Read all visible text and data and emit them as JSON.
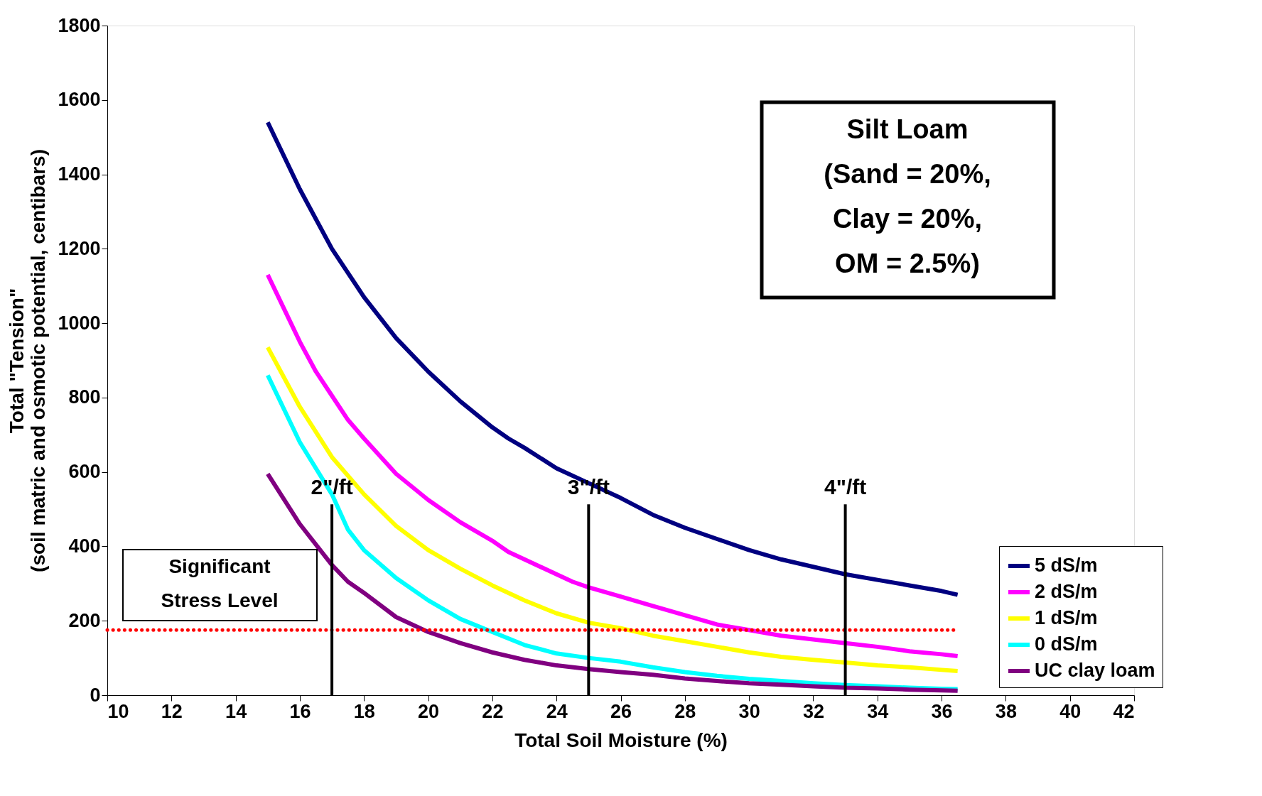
{
  "chart_data": {
    "type": "line",
    "xlabel": "Total Soil Moisture (%)",
    "ylabel": "Total \"Tension\"\n(soil matric and osmotic potential, centibars)",
    "xlim": [
      10,
      42
    ],
    "xticks": [
      10,
      12,
      14,
      16,
      18,
      20,
      22,
      24,
      26,
      28,
      30,
      32,
      34,
      36,
      38,
      40,
      42
    ],
    "ylim": [
      0,
      1800
    ],
    "yticks": [
      0,
      200,
      400,
      600,
      800,
      1000,
      1200,
      1400,
      1600,
      1800
    ],
    "grid": false,
    "legend": "bottom right",
    "marker": "none",
    "line_style": "solid",
    "series": [
      {
        "name": "5 dS/m",
        "color": "#000080",
        "x": [
          15,
          16,
          17,
          18,
          19,
          20,
          21,
          22,
          22.5,
          23,
          24,
          25,
          26,
          27,
          28,
          29,
          30,
          31,
          32,
          33,
          34,
          35,
          36,
          36.5
        ],
        "values": [
          1540,
          1360,
          1200,
          1070,
          960,
          870,
          790,
          720,
          690,
          665,
          610,
          570,
          530,
          485,
          450,
          420,
          390,
          365,
          345,
          325,
          310,
          295,
          280,
          270
        ]
      },
      {
        "name": "2 dS/m",
        "color": "#ff00ff",
        "x": [
          15,
          15.5,
          16,
          16.5,
          17,
          17.5,
          18,
          19,
          20,
          21,
          22,
          22.5,
          23,
          24,
          24.5,
          25,
          26,
          27,
          28,
          29,
          30,
          31,
          32,
          33,
          34,
          35,
          36,
          36.5
        ],
        "values": [
          1130,
          1040,
          950,
          870,
          805,
          740,
          690,
          595,
          525,
          465,
          415,
          385,
          365,
          325,
          305,
          290,
          265,
          240,
          215,
          190,
          175,
          160,
          150,
          140,
          130,
          118,
          110,
          105
        ]
      },
      {
        "name": "1 dS/m",
        "color": "#ffff00",
        "x": [
          15,
          16,
          17,
          18,
          19,
          20,
          21,
          22,
          23,
          24,
          25,
          26,
          27,
          28,
          29,
          30,
          31,
          32,
          33,
          34,
          35,
          36,
          36.5
        ],
        "values": [
          935,
          775,
          640,
          540,
          455,
          390,
          340,
          295,
          255,
          220,
          195,
          180,
          160,
          145,
          130,
          115,
          103,
          95,
          88,
          80,
          75,
          68,
          65
        ]
      },
      {
        "name": "0 dS/m",
        "color": "#00ffff",
        "x": [
          15,
          16,
          17,
          17.5,
          18,
          19,
          20,
          21,
          22,
          23,
          24,
          25,
          26,
          27,
          28,
          29,
          30,
          31,
          32,
          33,
          34,
          35,
          36,
          36.5
        ],
        "values": [
          860,
          680,
          540,
          445,
          390,
          315,
          255,
          205,
          170,
          135,
          112,
          100,
          90,
          75,
          62,
          52,
          44,
          38,
          32,
          27,
          24,
          20,
          17,
          16
        ]
      },
      {
        "name": "UC clay loam",
        "color": "#800080",
        "x": [
          15,
          16,
          17,
          17.5,
          18,
          19,
          20,
          21,
          22,
          23,
          24,
          25,
          26,
          27,
          28,
          29,
          30,
          31,
          32,
          33,
          34,
          35,
          36,
          36.5
        ],
        "values": [
          595,
          460,
          350,
          305,
          275,
          210,
          170,
          140,
          115,
          95,
          80,
          70,
          62,
          55,
          45,
          38,
          32,
          28,
          24,
          20,
          18,
          15,
          13,
          12
        ]
      }
    ],
    "ref_lines": [
      {
        "axis": "y",
        "value": 175,
        "label": "Significant\nStress Level",
        "color": "#ff0000",
        "line_style": "dotted"
      },
      {
        "axis": "x",
        "value": 17,
        "label": "2\"/ft",
        "color": "#000000",
        "line_style": "solid"
      },
      {
        "axis": "x",
        "value": 25,
        "label": "3\"/ft",
        "color": "#000000",
        "line_style": "solid"
      },
      {
        "axis": "x",
        "value": 33,
        "label": "4\"/ft",
        "color": "#000000",
        "line_style": "solid"
      }
    ],
    "annotations": [
      "Silt Loam\n(Sand = 20%,\nClay = 20%,\nOM = 2.5%)"
    ]
  }
}
